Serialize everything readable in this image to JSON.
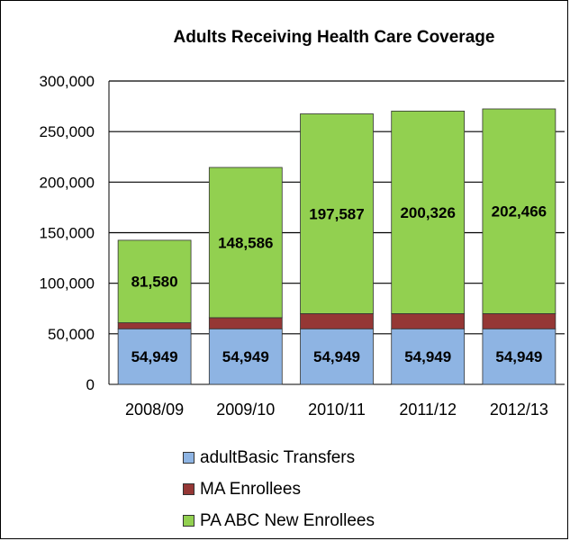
{
  "chart_data": {
    "type": "bar",
    "stacked": true,
    "title": "Adults Receiving Health Care Coverage",
    "categories": [
      "2008/09",
      "2009/10",
      "2010/11",
      "2011/12",
      "2012/13"
    ],
    "series": [
      {
        "name": "adultBasic Transfers",
        "color": "#8EB4E3",
        "values": [
          54949,
          54949,
          54949,
          54949,
          54949
        ],
        "labels": [
          "54,949",
          "54,949",
          "54,949",
          "54,949",
          "54,949"
        ]
      },
      {
        "name": "MA Enrollees",
        "color": "#953735",
        "values": [
          6000,
          11000,
          15000,
          15000,
          15000
        ]
      },
      {
        "name": "PA ABC New Enrollees",
        "color": "#92D050",
        "values": [
          81580,
          148586,
          197587,
          200326,
          202466
        ],
        "labels": [
          "81,580",
          "148,586",
          "197,587",
          "200,326",
          "202,466"
        ]
      }
    ],
    "ylim": [
      0,
      300000
    ],
    "yticks": [
      0,
      50000,
      100000,
      150000,
      200000,
      250000,
      300000
    ],
    "ytick_labels": [
      "0",
      "50,000",
      "100,000",
      "150,000",
      "200,000",
      "250,000",
      "300,000"
    ],
    "grid": true,
    "legend_position": "bottom"
  }
}
